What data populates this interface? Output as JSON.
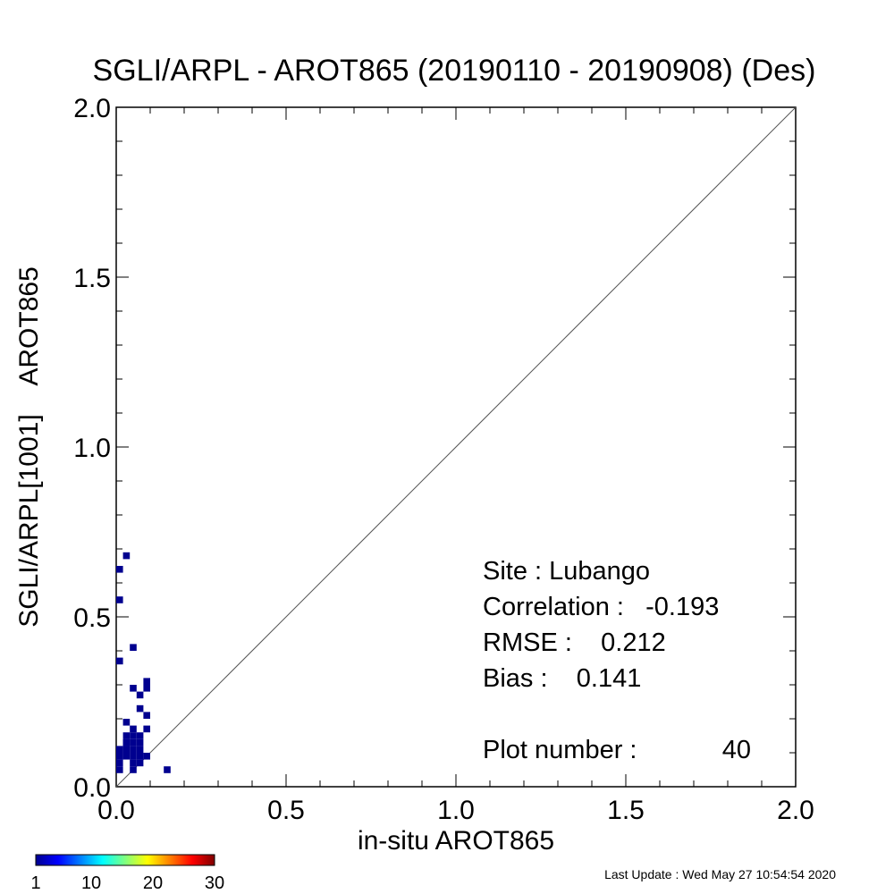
{
  "chart_data": {
    "type": "heatmap",
    "title": "SGLI/ARPL - AROT865 (20190110 - 20190908) (Des)",
    "xlabel": "in-situ AROT865",
    "ylabel": "SGLI/ARPL[1001]    AROT865",
    "xlim": [
      0,
      2
    ],
    "ylim": [
      0,
      2
    ],
    "x_ticks": [
      "0.0",
      "0.5",
      "1.0",
      "1.5",
      "2.0"
    ],
    "y_ticks": [
      "0.0",
      "0.5",
      "1.0",
      "1.5",
      "2.0"
    ],
    "reference_line": "1:1",
    "grid": false,
    "points": [
      {
        "x": 0.01,
        "y": 0.64
      },
      {
        "x": 0.03,
        "y": 0.68
      },
      {
        "x": 0.01,
        "y": 0.55
      },
      {
        "x": 0.05,
        "y": 0.41
      },
      {
        "x": 0.01,
        "y": 0.37
      },
      {
        "x": 0.05,
        "y": 0.29
      },
      {
        "x": 0.07,
        "y": 0.27
      },
      {
        "x": 0.09,
        "y": 0.31
      },
      {
        "x": 0.09,
        "y": 0.29
      },
      {
        "x": 0.07,
        "y": 0.23
      },
      {
        "x": 0.09,
        "y": 0.21
      },
      {
        "x": 0.03,
        "y": 0.19
      },
      {
        "x": 0.05,
        "y": 0.17
      },
      {
        "x": 0.09,
        "y": 0.17
      },
      {
        "x": 0.03,
        "y": 0.15
      },
      {
        "x": 0.05,
        "y": 0.15
      },
      {
        "x": 0.07,
        "y": 0.15
      },
      {
        "x": 0.01,
        "y": 0.11
      },
      {
        "x": 0.03,
        "y": 0.13
      },
      {
        "x": 0.05,
        "y": 0.13
      },
      {
        "x": 0.03,
        "y": 0.11
      },
      {
        "x": 0.05,
        "y": 0.11
      },
      {
        "x": 0.07,
        "y": 0.11
      },
      {
        "x": 0.01,
        "y": 0.09
      },
      {
        "x": 0.03,
        "y": 0.09
      },
      {
        "x": 0.05,
        "y": 0.09
      },
      {
        "x": 0.07,
        "y": 0.09
      },
      {
        "x": 0.09,
        "y": 0.09
      },
      {
        "x": 0.01,
        "y": 0.07
      },
      {
        "x": 0.05,
        "y": 0.07
      },
      {
        "x": 0.07,
        "y": 0.07
      },
      {
        "x": 0.01,
        "y": 0.05
      },
      {
        "x": 0.05,
        "y": 0.05
      },
      {
        "x": 0.15,
        "y": 0.05
      },
      {
        "x": 0.03,
        "y": 0.13
      },
      {
        "x": 0.07,
        "y": 0.13
      }
    ],
    "point_color": "#00008f",
    "colorbar": {
      "ticks": [
        "1",
        "10",
        "20",
        "30"
      ],
      "min": 1,
      "max": 30
    },
    "stats": {
      "site": "Site : Lubango",
      "correlation": "Correlation :   -0.193",
      "rmse": "RMSE :    0.212",
      "bias": "Bias :    0.141",
      "plot_number_label": "Plot number :",
      "plot_number": "40"
    }
  },
  "footer": {
    "last_update": "Last Update : Wed May 27 10:54:54 2020"
  }
}
